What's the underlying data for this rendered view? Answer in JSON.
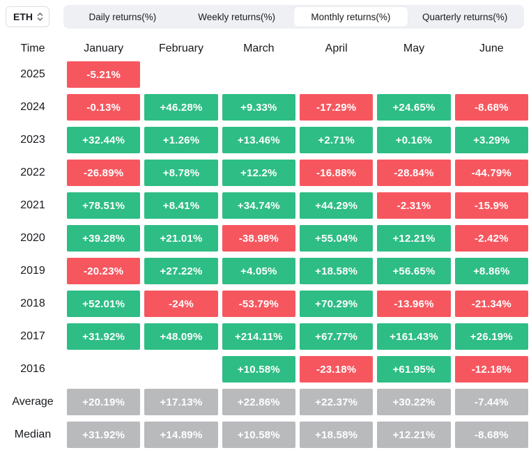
{
  "toolbar": {
    "symbol_select": {
      "value": "ETH"
    },
    "active_tab": "Monthly returns(%)",
    "tabs": [
      {
        "label": "Daily returns(%)"
      },
      {
        "label": "Weekly returns(%)"
      },
      {
        "label": "Monthly returns(%)"
      },
      {
        "label": "Quarterly returns(%)"
      }
    ]
  },
  "colors": {
    "positive": "#2ebd85",
    "negative": "#f6575f",
    "summary": "#b9babc"
  },
  "table": {
    "columns": [
      "Time",
      "January",
      "February",
      "March",
      "April",
      "May",
      "June"
    ],
    "rows": [
      {
        "label": "2025",
        "cells": [
          {
            "text": "-5.21%",
            "type": "negative"
          },
          null,
          null,
          null,
          null,
          null
        ]
      },
      {
        "label": "2024",
        "cells": [
          {
            "text": "-0.13%",
            "type": "negative"
          },
          {
            "text": "+46.28%",
            "type": "positive"
          },
          {
            "text": "+9.33%",
            "type": "positive"
          },
          {
            "text": "-17.29%",
            "type": "negative"
          },
          {
            "text": "+24.65%",
            "type": "positive"
          },
          {
            "text": "-8.68%",
            "type": "negative"
          }
        ]
      },
      {
        "label": "2023",
        "cells": [
          {
            "text": "+32.44%",
            "type": "positive"
          },
          {
            "text": "+1.26%",
            "type": "positive"
          },
          {
            "text": "+13.46%",
            "type": "positive"
          },
          {
            "text": "+2.71%",
            "type": "positive"
          },
          {
            "text": "+0.16%",
            "type": "positive"
          },
          {
            "text": "+3.29%",
            "type": "positive"
          }
        ]
      },
      {
        "label": "2022",
        "cells": [
          {
            "text": "-26.89%",
            "type": "negative"
          },
          {
            "text": "+8.78%",
            "type": "positive"
          },
          {
            "text": "+12.2%",
            "type": "positive"
          },
          {
            "text": "-16.88%",
            "type": "negative"
          },
          {
            "text": "-28.84%",
            "type": "negative"
          },
          {
            "text": "-44.79%",
            "type": "negative"
          }
        ]
      },
      {
        "label": "2021",
        "cells": [
          {
            "text": "+78.51%",
            "type": "positive"
          },
          {
            "text": "+8.41%",
            "type": "positive"
          },
          {
            "text": "+34.74%",
            "type": "positive"
          },
          {
            "text": "+44.29%",
            "type": "positive"
          },
          {
            "text": "-2.31%",
            "type": "negative"
          },
          {
            "text": "-15.9%",
            "type": "negative"
          }
        ]
      },
      {
        "label": "2020",
        "cells": [
          {
            "text": "+39.28%",
            "type": "positive"
          },
          {
            "text": "+21.01%",
            "type": "positive"
          },
          {
            "text": "-38.98%",
            "type": "negative"
          },
          {
            "text": "+55.04%",
            "type": "positive"
          },
          {
            "text": "+12.21%",
            "type": "positive"
          },
          {
            "text": "-2.42%",
            "type": "negative"
          }
        ]
      },
      {
        "label": "2019",
        "cells": [
          {
            "text": "-20.23%",
            "type": "negative"
          },
          {
            "text": "+27.22%",
            "type": "positive"
          },
          {
            "text": "+4.05%",
            "type": "positive"
          },
          {
            "text": "+18.58%",
            "type": "positive"
          },
          {
            "text": "+56.65%",
            "type": "positive"
          },
          {
            "text": "+8.86%",
            "type": "positive"
          }
        ]
      },
      {
        "label": "2018",
        "cells": [
          {
            "text": "+52.01%",
            "type": "positive"
          },
          {
            "text": "-24%",
            "type": "negative"
          },
          {
            "text": "-53.79%",
            "type": "negative"
          },
          {
            "text": "+70.29%",
            "type": "positive"
          },
          {
            "text": "-13.96%",
            "type": "negative"
          },
          {
            "text": "-21.34%",
            "type": "negative"
          }
        ]
      },
      {
        "label": "2017",
        "cells": [
          {
            "text": "+31.92%",
            "type": "positive"
          },
          {
            "text": "+48.09%",
            "type": "positive"
          },
          {
            "text": "+214.11%",
            "type": "positive"
          },
          {
            "text": "+67.77%",
            "type": "positive"
          },
          {
            "text": "+161.43%",
            "type": "positive"
          },
          {
            "text": "+26.19%",
            "type": "positive"
          }
        ]
      },
      {
        "label": "2016",
        "cells": [
          null,
          null,
          {
            "text": "+10.58%",
            "type": "positive"
          },
          {
            "text": "-23.18%",
            "type": "negative"
          },
          {
            "text": "+61.95%",
            "type": "positive"
          },
          {
            "text": "-12.18%",
            "type": "negative"
          }
        ]
      },
      {
        "label": "Average",
        "cells": [
          {
            "text": "+20.19%",
            "type": "summary"
          },
          {
            "text": "+17.13%",
            "type": "summary"
          },
          {
            "text": "+22.86%",
            "type": "summary"
          },
          {
            "text": "+22.37%",
            "type": "summary"
          },
          {
            "text": "+30.22%",
            "type": "summary"
          },
          {
            "text": "-7.44%",
            "type": "summary"
          }
        ]
      },
      {
        "label": "Median",
        "cells": [
          {
            "text": "+31.92%",
            "type": "summary"
          },
          {
            "text": "+14.89%",
            "type": "summary"
          },
          {
            "text": "+10.58%",
            "type": "summary"
          },
          {
            "text": "+18.58%",
            "type": "summary"
          },
          {
            "text": "+12.21%",
            "type": "summary"
          },
          {
            "text": "-8.68%",
            "type": "summary"
          }
        ]
      }
    ]
  }
}
